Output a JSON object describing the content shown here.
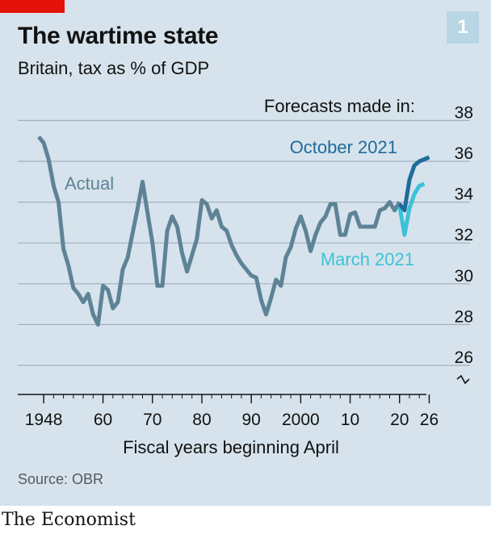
{
  "header": {
    "title": "The wartime state",
    "subtitle": "Britain, tax as % of GDP",
    "badge": "1"
  },
  "footer": {
    "source": "Source: OBR",
    "brand": "The Economist"
  },
  "colors": {
    "actual": "#5e8396",
    "october": "#1f6b9c",
    "march": "#3cc2d7",
    "background": "#d6e3ec",
    "brand_red": "#e3120b"
  },
  "chart_data": {
    "type": "line",
    "title": "The wartime state",
    "subtitle": "Britain, tax as % of GDP",
    "xlabel": "Fiscal years beginning April",
    "ylabel": "",
    "xlim": [
      1946,
      2027
    ],
    "ylim": [
      24.5,
      38
    ],
    "axis_break": true,
    "y_ticks": [
      26,
      28,
      30,
      32,
      34,
      36,
      38
    ],
    "x_ticks": [
      {
        "value": 1948,
        "label": "1948"
      },
      {
        "value": 1960,
        "label": "60"
      },
      {
        "value": 1970,
        "label": "70"
      },
      {
        "value": 1980,
        "label": "80"
      },
      {
        "value": 1990,
        "label": "90"
      },
      {
        "value": 2000,
        "label": "2000"
      },
      {
        "value": 2010,
        "label": "10"
      },
      {
        "value": 2020,
        "label": "20"
      },
      {
        "value": 2026,
        "label": "26"
      }
    ],
    "legend_title": "Forecasts made in:",
    "series": [
      {
        "name": "Actual",
        "color": "#5e8396",
        "x": [
          1947,
          1948,
          1949,
          1950,
          1951,
          1952,
          1953,
          1954,
          1955,
          1956,
          1957,
          1958,
          1959,
          1960,
          1961,
          1962,
          1963,
          1964,
          1965,
          1966,
          1967,
          1968,
          1969,
          1970,
          1971,
          1972,
          1973,
          1974,
          1975,
          1976,
          1977,
          1978,
          1979,
          1980,
          1981,
          1982,
          1983,
          1984,
          1985,
          1986,
          1987,
          1988,
          1989,
          1990,
          1991,
          1992,
          1993,
          1994,
          1995,
          1996,
          1997,
          1998,
          1999,
          2000,
          2001,
          2002,
          2003,
          2004,
          2005,
          2006,
          2007,
          2008,
          2009,
          2010,
          2011,
          2012,
          2013,
          2014,
          2015,
          2016,
          2017,
          2018,
          2019,
          2020
        ],
        "values": [
          37.2,
          36.9,
          36.1,
          34.8,
          34.0,
          31.7,
          30.9,
          29.8,
          29.5,
          29.1,
          29.5,
          28.5,
          28.0,
          29.9,
          29.7,
          28.8,
          29.1,
          30.7,
          31.3,
          32.5,
          33.7,
          35.0,
          33.5,
          32.0,
          29.9,
          29.9,
          32.6,
          33.3,
          32.8,
          31.5,
          30.6,
          31.4,
          32.2,
          34.1,
          33.9,
          33.2,
          33.6,
          32.8,
          32.6,
          31.9,
          31.4,
          31.0,
          30.7,
          30.4,
          30.3,
          29.2,
          28.5,
          29.3,
          30.2,
          29.9,
          31.3,
          31.8,
          32.7,
          33.3,
          32.6,
          31.6,
          32.4,
          33.0,
          33.3,
          33.9,
          33.9,
          32.4,
          32.4,
          33.4,
          33.5,
          32.8,
          32.8,
          32.8,
          32.8,
          33.6,
          33.7,
          34.0,
          33.6,
          34.0
        ]
      },
      {
        "name": "March 2021",
        "color": "#3cc2d7",
        "x": [
          2020,
          2021,
          2022,
          2023,
          2024,
          2025
        ],
        "values": [
          33.8,
          32.4,
          33.7,
          34.4,
          34.8,
          34.9
        ]
      },
      {
        "name": "October 2021",
        "color": "#1f6b9c",
        "x": [
          2020,
          2021,
          2022,
          2023,
          2024,
          2025,
          2026
        ],
        "values": [
          33.9,
          33.6,
          35.1,
          35.8,
          36.0,
          36.1,
          36.2
        ]
      }
    ],
    "annotations": [
      {
        "text": "Actual",
        "series": "Actual"
      },
      {
        "text": "October 2021",
        "series": "October 2021"
      },
      {
        "text": "March 2021",
        "series": "March 2021"
      }
    ]
  }
}
